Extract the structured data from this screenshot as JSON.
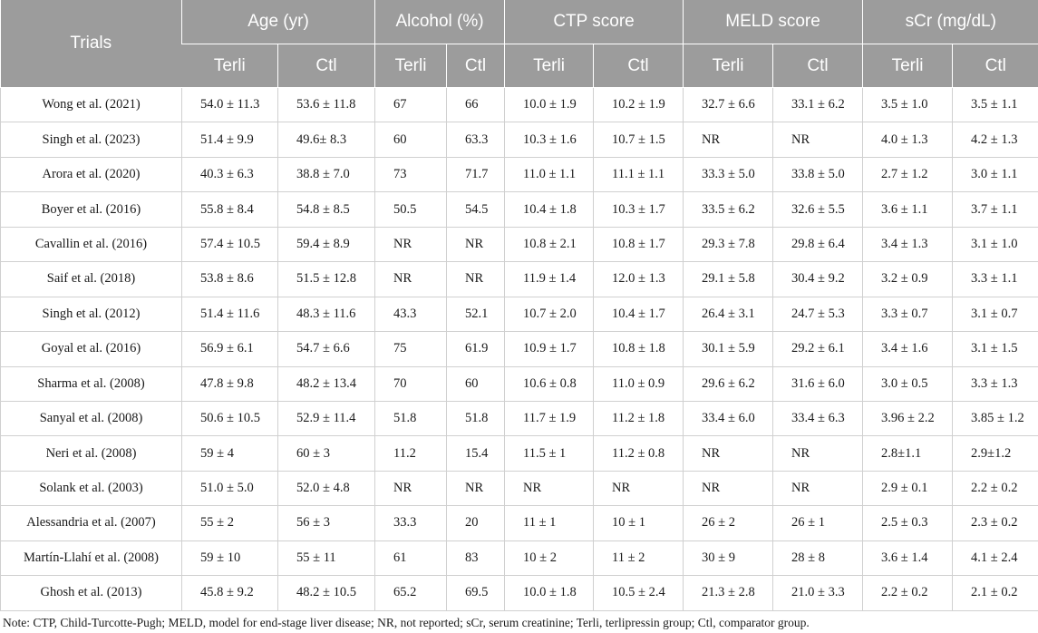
{
  "headers": {
    "trials": "Trials",
    "groups": [
      "Age (yr)",
      "Alcohol (%)",
      "CTP score",
      "MELD score",
      "sCr (mg/dL)"
    ],
    "sub": [
      "Terli",
      "Ctl"
    ]
  },
  "rows": [
    {
      "trial": "Wong et al. (2021)",
      "cells": [
        "54.0 ± 11.3",
        "53.6 ± 11.8",
        "67",
        "66",
        "10.0 ± 1.9",
        "10.2 ± 1.9",
        "32.7 ± 6.6",
        "33.1 ± 6.2",
        "3.5 ± 1.0",
        "3.5 ± 1.1"
      ]
    },
    {
      "trial": "Singh et al. (2023)",
      "cells": [
        "51.4 ± 9.9",
        "49.6± 8.3",
        "60",
        "63.3",
        "10.3 ± 1.6",
        "10.7 ± 1.5",
        "NR",
        "NR",
        "4.0 ± 1.3",
        "4.2 ± 1.3"
      ]
    },
    {
      "trial": "Arora et al. (2020)",
      "cells": [
        "40.3 ± 6.3",
        "38.8 ± 7.0",
        "73",
        "71.7",
        "11.0 ± 1.1",
        "11.1 ± 1.1",
        "33.3 ± 5.0",
        "33.8 ± 5.0",
        "2.7 ± 1.2",
        "3.0 ± 1.1"
      ]
    },
    {
      "trial": "Boyer et al. (2016)",
      "cells": [
        "55.8 ± 8.4",
        "54.8 ± 8.5",
        "50.5",
        "54.5",
        "10.4 ± 1.8",
        "10.3 ± 1.7",
        "33.5 ± 6.2",
        "32.6 ± 5.5",
        "3.6 ± 1.1",
        "3.7 ± 1.1"
      ]
    },
    {
      "trial": "Cavallin et al. (2016)",
      "cells": [
        "57.4 ± 10.5",
        "59.4 ± 8.9",
        "NR",
        "NR",
        "10.8 ± 2.1",
        "10.8 ± 1.7",
        "29.3 ± 7.8",
        "29.8 ± 6.4",
        "3.4 ± 1.3",
        "3.1 ± 1.0"
      ]
    },
    {
      "trial": "Saif et al. (2018)",
      "cells": [
        "53.8 ± 8.6",
        "51.5 ± 12.8",
        "NR",
        "NR",
        "11.9 ± 1.4",
        "12.0 ± 1.3",
        "29.1 ± 5.8",
        "30.4 ± 9.2",
        "3.2 ± 0.9",
        "3.3 ± 1.1"
      ]
    },
    {
      "trial": "Singh et al. (2012)",
      "cells": [
        "51.4 ± 11.6",
        "48.3 ± 11.6",
        "43.3",
        "52.1",
        "10.7 ± 2.0",
        "10.4 ± 1.7",
        "26.4 ± 3.1",
        "24.7 ± 5.3",
        "3.3 ± 0.7",
        "3.1 ± 0.7"
      ]
    },
    {
      "trial": "Goyal et al. (2016)",
      "cells": [
        "56.9 ± 6.1",
        "54.7 ± 6.6",
        "75",
        "61.9",
        "10.9 ± 1.7",
        "10.8 ± 1.8",
        "30.1 ± 5.9",
        "29.2 ± 6.1",
        "3.4 ± 1.6",
        "3.1 ± 1.5"
      ]
    },
    {
      "trial": "Sharma et al. (2008)",
      "cells": [
        "47.8 ± 9.8",
        "48.2 ± 13.4",
        "70",
        "60",
        "10.6 ± 0.8",
        "11.0 ± 0.9",
        "29.6 ± 6.2",
        "31.6 ± 6.0",
        "3.0 ± 0.5",
        "3.3 ± 1.3"
      ]
    },
    {
      "trial": "Sanyal et al. (2008)",
      "cells": [
        "50.6 ± 10.5",
        "52.9 ± 11.4",
        "51.8",
        "51.8",
        "11.7 ± 1.9",
        "11.2 ± 1.8",
        "33.4 ± 6.0",
        "33.4 ± 6.3",
        "3.96 ± 2.2",
        "3.85 ± 1.2"
      ]
    },
    {
      "trial": "Neri et al. (2008)",
      "cells": [
        "59 ± 4",
        "60 ± 3",
        "11.2",
        "15.4",
        "11.5 ± 1",
        "11.2 ± 0.8",
        "NR",
        "NR",
        "2.8±1.1",
        "2.9±1.2"
      ]
    },
    {
      "trial": "Solank et al. (2003)",
      "cells": [
        "51.0 ± 5.0",
        "52.0 ± 4.8",
        "NR",
        "NR",
        "NR",
        "NR",
        "NR",
        "NR",
        "2.9 ± 0.1",
        "2.2 ± 0.2"
      ]
    },
    {
      "trial": "Alessandria et al. (2007)",
      "cells": [
        "55 ± 2",
        "56 ± 3",
        "33.3",
        "20",
        "11 ± 1",
        "10 ± 1",
        "26 ± 2",
        "26 ± 1",
        "2.5 ± 0.3",
        "2.3 ± 0.2"
      ]
    },
    {
      "trial": "Martín-Llahí et al. (2008)",
      "cells": [
        "59 ± 10",
        "55 ± 11",
        "61",
        "83",
        "10 ± 2",
        "11 ± 2",
        "30 ± 9",
        "28 ± 8",
        "3.6 ± 1.4",
        "4.1 ± 2.4"
      ]
    },
    {
      "trial": "Ghosh et al. (2013)",
      "cells": [
        "45.8 ± 9.2",
        "48.2 ± 10.5",
        "65.2",
        "69.5",
        "10.0 ± 1.8",
        "10.5 ± 2.4",
        "21.3 ± 2.8",
        "21.0 ± 3.3",
        "2.2 ± 0.2",
        "2.1 ± 0.2"
      ]
    }
  ],
  "note": "Note: CTP, Child-Turcotte-Pugh; MELD, model for end-stage liver disease; NR, not reported; sCr, serum creatinine; Terli, terlipressin group; Ctl, comparator group."
}
